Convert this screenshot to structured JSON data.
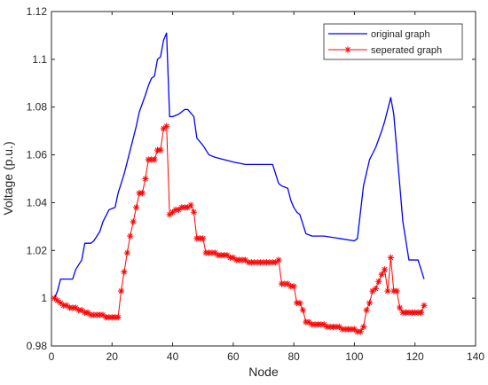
{
  "chart_data": {
    "type": "line",
    "xlabel": "Node",
    "ylabel": "Voltage (p.u.)",
    "xlim": [
      0,
      140
    ],
    "ylim": [
      0.98,
      1.12
    ],
    "x_ticks": [
      0,
      20,
      40,
      60,
      80,
      100,
      120,
      140
    ],
    "x_tick_labels": [
      "0",
      "20",
      "40",
      "60",
      "80",
      "100",
      "120",
      "140"
    ],
    "y_ticks": [
      0.98,
      1,
      1.02,
      1.04,
      1.06,
      1.08,
      1.1,
      1.12
    ],
    "y_tick_labels": [
      "0.98",
      "1",
      "1.02",
      "1.04",
      "1.06",
      "1.08",
      "1.1",
      "1.12"
    ],
    "grid": false,
    "legend_position": "top-right",
    "series": [
      {
        "name": "original graph",
        "color": "#0000ff",
        "marker": "none",
        "x": [
          1,
          2,
          3,
          7,
          8,
          10,
          11,
          13,
          14,
          16,
          17,
          19,
          21,
          22,
          24,
          26,
          28,
          29,
          31,
          32,
          33,
          34,
          35,
          36,
          37,
          38,
          39,
          40,
          42,
          44,
          45,
          47,
          48,
          50,
          52,
          54,
          57,
          60,
          64,
          67,
          70,
          73,
          75,
          76,
          78,
          79,
          80,
          81,
          82,
          84,
          86,
          90,
          95,
          100,
          101,
          103,
          105,
          107,
          109,
          110,
          112,
          113,
          116,
          118,
          121,
          123
        ],
        "y": [
          1.0,
          1.003,
          1.008,
          1.008,
          1.012,
          1.016,
          1.023,
          1.023,
          1.024,
          1.028,
          1.032,
          1.037,
          1.038,
          1.044,
          1.052,
          1.062,
          1.072,
          1.078,
          1.085,
          1.089,
          1.092,
          1.093,
          1.1,
          1.101,
          1.108,
          1.111,
          1.076,
          1.076,
          1.077,
          1.079,
          1.079,
          1.076,
          1.067,
          1.064,
          1.06,
          1.059,
          1.058,
          1.057,
          1.056,
          1.056,
          1.056,
          1.056,
          1.048,
          1.047,
          1.046,
          1.041,
          1.038,
          1.036,
          1.035,
          1.027,
          1.026,
          1.026,
          1.025,
          1.024,
          1.025,
          1.047,
          1.058,
          1.063,
          1.07,
          1.074,
          1.084,
          1.077,
          1.032,
          1.016,
          1.016,
          1.008
        ]
      },
      {
        "name": "seperated graph",
        "color": "#ff0000",
        "marker": "asterisk",
        "x": [
          1,
          2,
          3,
          4,
          5,
          6,
          7,
          8,
          9,
          10,
          11,
          12,
          13,
          14,
          15,
          16,
          17,
          18,
          19,
          20,
          21,
          22,
          23,
          24,
          25,
          26,
          27,
          28,
          29,
          30,
          31,
          32,
          33,
          34,
          35,
          36,
          37,
          38,
          39,
          40,
          41,
          42,
          43,
          44,
          45,
          46,
          47,
          48,
          49,
          50,
          51,
          52,
          53,
          54,
          55,
          56,
          57,
          58,
          59,
          60,
          61,
          62,
          63,
          64,
          65,
          66,
          67,
          68,
          69,
          70,
          71,
          72,
          73,
          74,
          75,
          76,
          77,
          78,
          79,
          80,
          81,
          82,
          83,
          84,
          85,
          86,
          87,
          88,
          89,
          90,
          91,
          92,
          93,
          94,
          95,
          96,
          97,
          98,
          99,
          100,
          101,
          102,
          103,
          104,
          105,
          106,
          107,
          108,
          109,
          110,
          111,
          112,
          113,
          114,
          115,
          116,
          117,
          118,
          119,
          120,
          121,
          122,
          123
        ],
        "y": [
          1.0,
          0.999,
          0.998,
          0.997,
          0.997,
          0.996,
          0.996,
          0.996,
          0.995,
          0.995,
          0.994,
          0.994,
          0.993,
          0.993,
          0.993,
          0.993,
          0.993,
          0.992,
          0.992,
          0.992,
          0.992,
          0.992,
          1.003,
          1.011,
          1.019,
          1.026,
          1.032,
          1.038,
          1.044,
          1.044,
          1.05,
          1.058,
          1.058,
          1.058,
          1.062,
          1.062,
          1.071,
          1.072,
          1.035,
          1.036,
          1.037,
          1.037,
          1.038,
          1.038,
          1.038,
          1.039,
          1.036,
          1.025,
          1.025,
          1.025,
          1.019,
          1.019,
          1.019,
          1.019,
          1.018,
          1.018,
          1.018,
          1.018,
          1.017,
          1.017,
          1.016,
          1.016,
          1.016,
          1.016,
          1.015,
          1.015,
          1.015,
          1.015,
          1.015,
          1.015,
          1.015,
          1.015,
          1.015,
          1.015,
          1.016,
          1.006,
          1.006,
          1.006,
          1.005,
          1.005,
          0.998,
          0.998,
          0.995,
          0.99,
          0.99,
          0.989,
          0.989,
          0.989,
          0.989,
          0.989,
          0.988,
          0.988,
          0.988,
          0.988,
          0.988,
          0.987,
          0.987,
          0.987,
          0.987,
          0.987,
          0.986,
          0.986,
          0.988,
          0.995,
          0.998,
          1.003,
          1.004,
          1.007,
          1.01,
          1.012,
          1.003,
          1.017,
          1.003,
          1.003,
          0.996,
          0.994,
          0.994,
          0.994,
          0.994,
          0.994,
          0.994,
          0.994,
          0.997
        ]
      }
    ]
  }
}
